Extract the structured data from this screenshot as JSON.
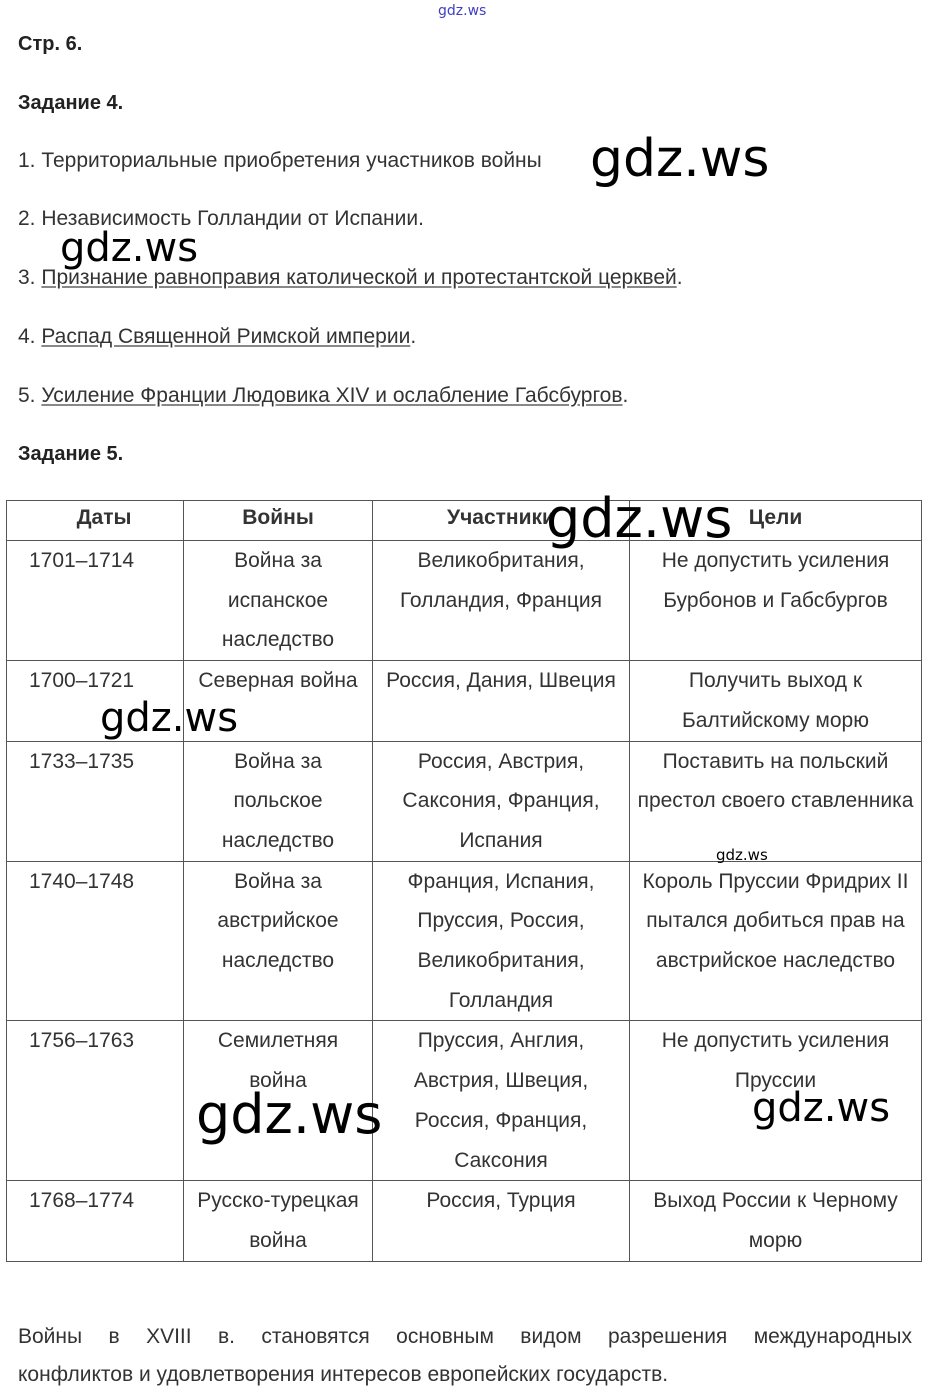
{
  "watermark": "gdz.ws",
  "page_label": "Стр. 6.",
  "task4": {
    "title": "Задание 4.",
    "items": [
      {
        "num": "1.",
        "text": "Территориальные приобретения участников войны"
      },
      {
        "num": "2.",
        "text": "Независимость Голландии от Испании."
      },
      {
        "num": "3.",
        "text": "Признание равноправия католической и протестантской церквей",
        "end": "."
      },
      {
        "num": "4.",
        "text": "Распад Священной Римской империи",
        "end": "."
      },
      {
        "num": "5.",
        "text": "Усиление Франции Людовика XIV и ослабление Габсбургов",
        "end": "."
      }
    ]
  },
  "task5": {
    "title": "Задание 5.",
    "headers": [
      "Даты",
      "Войны",
      "Участники",
      "Цели"
    ],
    "rows": [
      [
        "1701–1714",
        "Война за испанское наследство",
        "Великобритания, Голландия, Франция",
        "Не допустить усиления Бурбонов и Габсбургов"
      ],
      [
        "1700–1721",
        "Северная война",
        "Россия, Дания, Швеция",
        "Получить выход к Балтийскому морю"
      ],
      [
        "1733–1735",
        "Война за польское наследство",
        "Россия, Австрия, Саксония, Франция, Испания",
        "Поставить на польский престол своего ставленника"
      ],
      [
        "1740–1748",
        "Война за австрийское наследство",
        "Франция, Испания, Пруссия, Россия, Великобритания, Голландия",
        "Король Пруссии Фридрих II пытался добиться прав на австрийское наследство"
      ],
      [
        "1756–1763",
        "Семилетняя война",
        "Пруссия, Англия, Австрия, Швеция, Россия, Франция, Саксония",
        "Не допустить усиления Пруссии"
      ],
      [
        "1768–1774",
        "Русско-турецкая война",
        "Россия, Турция",
        "Выход России к Черному морю"
      ]
    ]
  },
  "conclusion": {
    "line1": "Войны в XVIII в. становятся основным видом разрешения международных",
    "line2": "конфликтов и удовлетворения интересов европейских государств."
  }
}
